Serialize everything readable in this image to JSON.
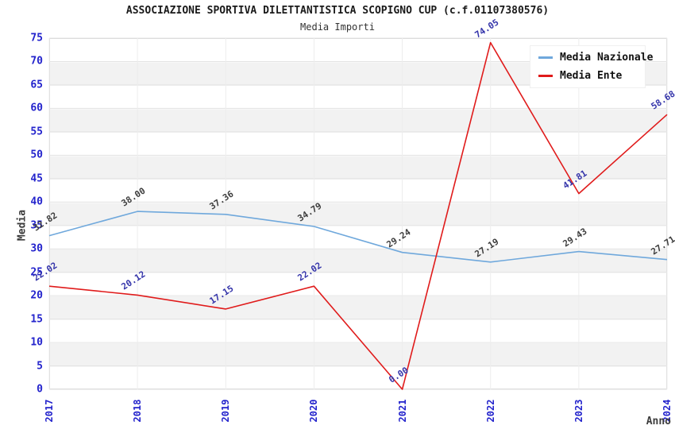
{
  "chart_data": {
    "type": "line",
    "title": "ASSOCIAZIONE SPORTIVA DILETTANTISTICA SCOPIGNO CUP (c.f.01107380576)",
    "subtitle": "Media Importi",
    "xlabel": "Anno",
    "ylabel": "Media",
    "categories": [
      "2017",
      "2018",
      "2019",
      "2020",
      "2021",
      "2022",
      "2023",
      "2024"
    ],
    "ylim": [
      0,
      75
    ],
    "ytick_step": 5,
    "grid": "horizontal-bands-and-light-gridlines",
    "legend_position": "top-right",
    "series": [
      {
        "name": "Media Nazionale",
        "color": "#6fa8dc",
        "label_color": "#3d3d3d",
        "values": [
          32.82,
          38.0,
          37.36,
          34.79,
          29.24,
          27.19,
          29.43,
          27.71
        ]
      },
      {
        "name": "Media Ente",
        "color": "#e01b1b",
        "label_color": "#3434aa",
        "values": [
          22.02,
          20.12,
          17.15,
          22.02,
          0.0,
          74.05,
          41.81,
          58.68
        ]
      }
    ],
    "colors": {
      "axis_tick_text": "#2323cc",
      "band_fill": "#f2f2f2",
      "gridline": "#e3e3e3",
      "vertical_gridline": "#ededed",
      "plot_border": "#d6d6d6",
      "title_text": "#1a1a1a"
    }
  }
}
